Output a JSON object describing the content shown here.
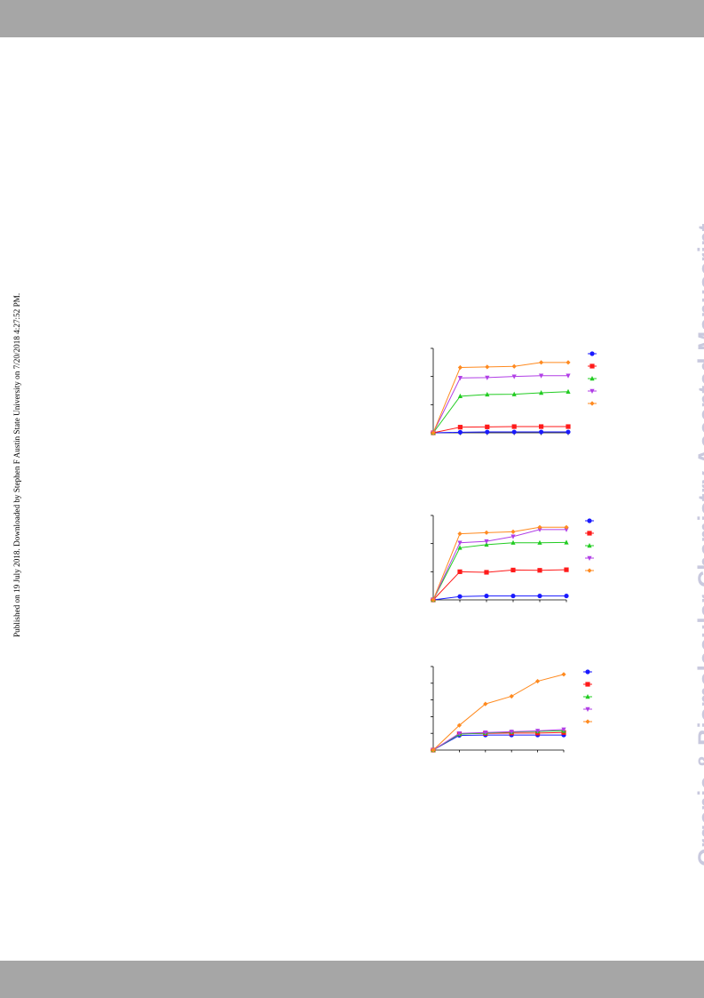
{
  "header": {
    "band_color": "#a6a6a6"
  },
  "footer": {
    "band_color": "#a6a6a6"
  },
  "side_note": "Published on 19 July 2018. Downloaded by Stephen F Austin State University on 7/20/2018 4:27:52 PM.",
  "watermark": "Organic & Biomolecular Chemistry Accepted Manuscript",
  "series_colors": [
    "#1a1aff",
    "#ff1a1a",
    "#22cc22",
    "#b13fe6",
    "#ff8a1f"
  ],
  "series_markers": [
    "circle",
    "square",
    "triangle-up",
    "triangle-down",
    "diamond"
  ],
  "chart_data": [
    {
      "type": "line",
      "x": [
        0,
        1,
        2,
        3,
        4,
        5
      ],
      "ylim": [
        0,
        3
      ],
      "yticks": [
        0,
        1,
        2,
        3
      ],
      "legend": "right",
      "series": [
        {
          "values": [
            0,
            0.02,
            0.03,
            0.03,
            0.03,
            0.03
          ]
        },
        {
          "values": [
            0,
            0.2,
            0.21,
            0.22,
            0.22,
            0.22
          ]
        },
        {
          "values": [
            0,
            1.3,
            1.36,
            1.37,
            1.42,
            1.46
          ]
        },
        {
          "values": [
            0,
            1.95,
            1.96,
            2.0,
            2.03,
            2.03
          ]
        },
        {
          "values": [
            0,
            2.32,
            2.34,
            2.36,
            2.5,
            2.5
          ]
        }
      ]
    },
    {
      "type": "line",
      "x": [
        0,
        1,
        2,
        3,
        4,
        5
      ],
      "ylim": [
        0,
        3
      ],
      "yticks": [
        0,
        1,
        2,
        3
      ],
      "legend": "right",
      "series": [
        {
          "values": [
            0,
            0.12,
            0.14,
            0.14,
            0.14,
            0.14
          ]
        },
        {
          "values": [
            0,
            1.0,
            0.98,
            1.06,
            1.05,
            1.07
          ]
        },
        {
          "values": [
            0,
            1.85,
            1.96,
            2.03,
            2.03,
            2.04
          ]
        },
        {
          "values": [
            0,
            2.03,
            2.08,
            2.25,
            2.5,
            2.5
          ]
        },
        {
          "values": [
            0,
            2.35,
            2.39,
            2.42,
            2.58,
            2.58
          ]
        }
      ]
    },
    {
      "type": "line",
      "x": [
        0,
        1,
        2,
        3,
        4,
        5
      ],
      "ylim": [
        0,
        5
      ],
      "yticks": [
        0,
        1,
        2,
        3,
        4,
        5
      ],
      "legend": "right",
      "series": [
        {
          "values": [
            0,
            0.88,
            0.9,
            0.9,
            0.9,
            0.9
          ]
        },
        {
          "values": [
            0,
            0.98,
            1.0,
            1.02,
            1.02,
            1.05
          ]
        },
        {
          "values": [
            0,
            0.95,
            1.02,
            1.08,
            1.12,
            1.15
          ]
        },
        {
          "values": [
            0,
            1.0,
            1.05,
            1.1,
            1.15,
            1.23
          ]
        },
        {
          "values": [
            0,
            1.48,
            2.76,
            3.22,
            4.12,
            4.53
          ]
        }
      ]
    }
  ]
}
